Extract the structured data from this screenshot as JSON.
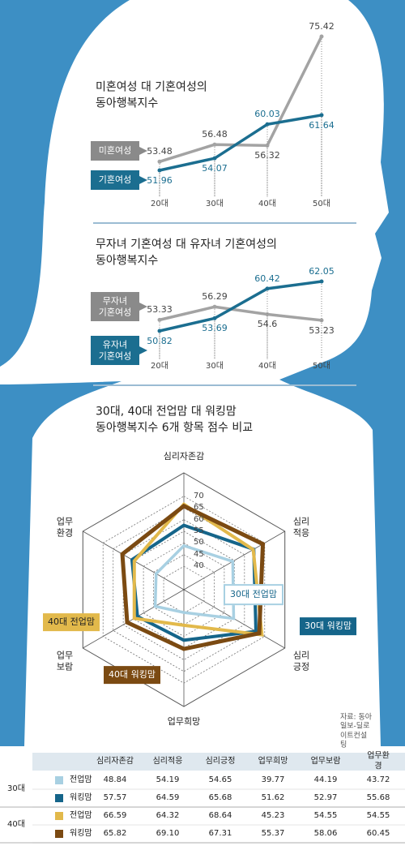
{
  "chart_data": [
    {
      "type": "line",
      "title": "미혼여성 대 기혼여성의\n동아행복지수",
      "categories": [
        "20대",
        "30대",
        "40대",
        "50대"
      ],
      "series": [
        {
          "name": "미혼여성",
          "color": "#a3a3a3",
          "values": [
            53.48,
            56.48,
            56.32,
            75.42
          ]
        },
        {
          "name": "기혼여성",
          "color": "#1b6e90",
          "values": [
            51.96,
            54.07,
            60.03,
            61.64
          ]
        }
      ]
    },
    {
      "type": "line",
      "title": "무자녀 기혼여성 대 유자녀 기혼여성의\n동아행복지수",
      "categories": [
        "20대",
        "30대",
        "40대",
        "50대"
      ],
      "series": [
        {
          "name": "무자녀\n기혼여성",
          "color": "#a3a3a3",
          "values": [
            53.33,
            56.29,
            54.6,
            53.23
          ]
        },
        {
          "name": "유자녀\n기혼여성",
          "color": "#1b6e90",
          "values": [
            50.82,
            53.69,
            60.42,
            62.05
          ]
        }
      ]
    },
    {
      "type": "radar",
      "title": "30대, 40대 전업맘 대 워킹맘\n동아행복지수 6개 항목 점수 비교",
      "categories": [
        "심리자존감",
        "심리\n적응",
        "심리\n긍정",
        "업무희망",
        "업무\n보람",
        "업무\n환경"
      ],
      "rlim": [
        30,
        80
      ],
      "rticks": [
        40,
        45,
        50,
        55,
        60,
        65,
        70
      ],
      "series": [
        {
          "name": "30대 전업맘",
          "color": "#a8d0e2",
          "values": [
            48.84,
            54.19,
            54.65,
            39.77,
            44.19,
            43.72
          ]
        },
        {
          "name": "30대 워킹맘",
          "color": "#15658a",
          "values": [
            57.57,
            64.59,
            65.68,
            51.62,
            52.97,
            55.68
          ]
        },
        {
          "name": "40대 전업맘",
          "color": "#e2b94b",
          "values": [
            66.59,
            64.32,
            68.64,
            45.23,
            54.55,
            54.55
          ]
        },
        {
          "name": "40대 워킹맘",
          "color": "#7b4a12",
          "values": [
            65.82,
            69.1,
            67.31,
            55.37,
            58.06,
            60.45
          ]
        }
      ]
    }
  ],
  "source": "자료: 동아일보-딜로이트컨설팅",
  "table": {
    "columns": [
      "심리자존감",
      "심리적응",
      "심리긍정",
      "업무희망",
      "업무보람",
      "업무환경"
    ],
    "groups": [
      {
        "label": "30대",
        "rows": [
          {
            "label": "전업맘",
            "cells": [
              "48.84",
              "54.19",
              "54.65",
              "39.77",
              "44.19",
              "43.72"
            ]
          },
          {
            "label": "워킹맘",
            "cells": [
              "57.57",
              "64.59",
              "65.68",
              "51.62",
              "52.97",
              "55.68"
            ]
          }
        ]
      },
      {
        "label": "40대",
        "rows": [
          {
            "label": "전업맘",
            "cells": [
              "66.59",
              "64.32",
              "68.64",
              "45.23",
              "54.55",
              "54.55"
            ]
          },
          {
            "label": "워킹맘",
            "cells": [
              "65.82",
              "69.10",
              "67.31",
              "55.37",
              "58.06",
              "60.45"
            ]
          }
        ]
      }
    ]
  }
}
